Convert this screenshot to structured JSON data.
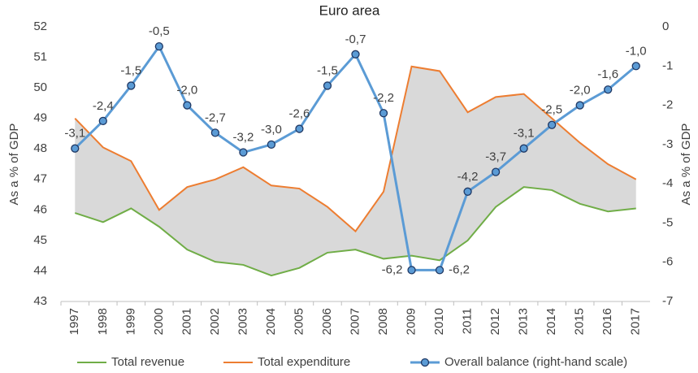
{
  "chart_data": {
    "type": "line",
    "title": "Euro area",
    "y_label": "As a % of GDP",
    "y2_label": "As a % of GDP",
    "categories": [
      "1997",
      "1998",
      "1999",
      "2000",
      "2001",
      "2002",
      "2003",
      "2004",
      "2005",
      "2006",
      "2007",
      "2008",
      "2009",
      "2010",
      "2011",
      "2012",
      "2013",
      "2014",
      "2015",
      "2016",
      "2017"
    ],
    "series": [
      {
        "name": "Total revenue",
        "color": "#70ad47",
        "values": [
          45.9,
          45.6,
          46.05,
          45.45,
          44.7,
          44.3,
          44.2,
          43.85,
          44.1,
          44.6,
          44.7,
          44.4,
          44.5,
          44.35,
          45.0,
          46.1,
          46.75,
          46.65,
          46.2,
          45.95,
          46.05
        ]
      },
      {
        "name": "Total expenditure",
        "color": "#ed7d31",
        "values": [
          49.0,
          48.05,
          47.6,
          46.0,
          46.75,
          47.0,
          47.4,
          46.8,
          46.7,
          46.1,
          45.3,
          46.6,
          50.7,
          50.55,
          49.2,
          49.7,
          49.8,
          49.0,
          48.2,
          47.5,
          47.0
        ]
      },
      {
        "name": "Overall balance (right-hand scale)",
        "color": "#5b9bd5",
        "axis": "y2",
        "values": [
          -3.1,
          -2.4,
          -1.5,
          -0.5,
          -2.0,
          -2.7,
          -3.2,
          -3.0,
          -2.6,
          -1.5,
          -0.7,
          -2.2,
          -6.2,
          -6.2,
          -4.2,
          -3.7,
          -3.1,
          -2.5,
          -2.0,
          -1.6,
          -1.0
        ],
        "value_labels": [
          "-3,1",
          "-2,4",
          "-1,5",
          "-0,5",
          "-2,0",
          "-2,7",
          "-3,2",
          "-3,0",
          "-2,6",
          "-1,5",
          "-0,7",
          "-2,2",
          "-6,2",
          "-6,2",
          "-4,2",
          "-3,7",
          "-3,1",
          "-2,5",
          "-2,0",
          "-1,6",
          "-1,0"
        ]
      }
    ],
    "fill_between_color": "#d9d9d9",
    "ylim": [
      43,
      52
    ],
    "yticks": [
      43,
      44,
      45,
      46,
      47,
      48,
      49,
      50,
      51,
      52
    ],
    "y2lim": [
      -7,
      0
    ],
    "y2ticks": [
      -7,
      -6,
      -5,
      -4,
      -3,
      -2,
      -1,
      0
    ],
    "legend": "bottom"
  }
}
